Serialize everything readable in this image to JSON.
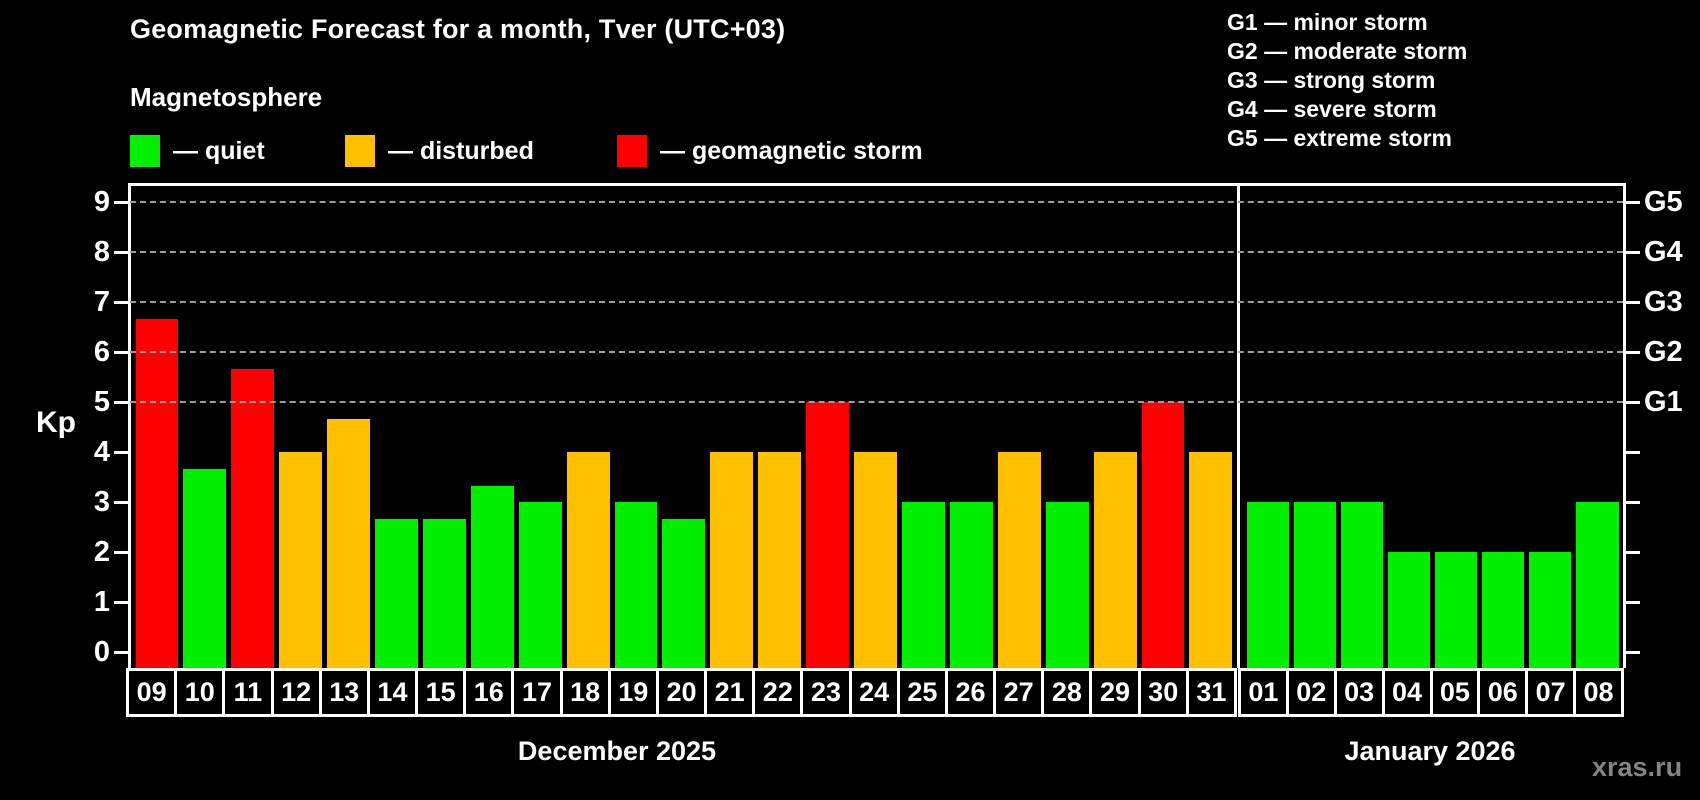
{
  "title": "Geomagnetic Forecast for a month, Tver (UTC+03)",
  "subtitle": "Magnetosphere",
  "legend": {
    "items": [
      {
        "key": "quiet",
        "label": "— quiet",
        "color": "#00f000"
      },
      {
        "key": "disturbed",
        "label": "— disturbed",
        "color": "#ffc000"
      },
      {
        "key": "storm",
        "label": "— geomagnetic storm",
        "color": "#ff0000"
      }
    ]
  },
  "g_scale_legend": [
    "G1 — minor storm",
    "G2 — moderate storm",
    "G3 — strong storm",
    "G4 — severe storm",
    "G5 — extreme storm"
  ],
  "watermark": "xras.ru",
  "chart_data": {
    "type": "bar",
    "title": "Geomagnetic Forecast for a month, Tver (UTC+03)",
    "ylabel": "Kp",
    "ylim": [
      0,
      9
    ],
    "y_ticks": [
      0,
      1,
      2,
      3,
      4,
      5,
      6,
      7,
      8,
      9
    ],
    "gridlines_at": [
      5,
      6,
      7,
      8,
      9
    ],
    "grid": "dashed horizontal at storm levels only",
    "legend_position": "top",
    "right_axis_labels": [
      {
        "value": 5,
        "label": "G1"
      },
      {
        "value": 6,
        "label": "G2"
      },
      {
        "value": 7,
        "label": "G3"
      },
      {
        "value": 8,
        "label": "G4"
      },
      {
        "value": 9,
        "label": "G5"
      }
    ],
    "color_thresholds": {
      "disturbed_min": 4,
      "storm_min": 5
    },
    "sections": [
      {
        "label": "December 2025",
        "categories": [
          "09",
          "10",
          "11",
          "12",
          "13",
          "14",
          "15",
          "16",
          "17",
          "18",
          "19",
          "20",
          "21",
          "22",
          "23",
          "24",
          "25",
          "26",
          "27",
          "28",
          "29",
          "30",
          "31"
        ],
        "values": [
          6.67,
          3.67,
          5.67,
          4,
          4.67,
          2.67,
          2.67,
          3.33,
          3,
          4,
          3,
          2.67,
          4,
          4,
          5,
          4,
          3,
          3,
          4,
          3,
          4,
          5,
          4
        ]
      },
      {
        "label": "January 2026",
        "categories": [
          "01",
          "02",
          "03",
          "04",
          "05",
          "06",
          "07",
          "08"
        ],
        "values": [
          3,
          3,
          3,
          2,
          2,
          2,
          2,
          3
        ]
      }
    ]
  }
}
